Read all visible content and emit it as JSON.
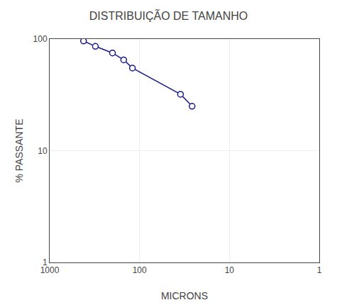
{
  "chart_data": {
    "type": "line",
    "title": "DISTRIBUIÇÃO DE TAMANHO",
    "xlabel": "MICRONS",
    "ylabel": "% PASSANTE",
    "x": [
      420,
      310,
      200,
      150,
      120,
      35,
      26
    ],
    "values": [
      96,
      86,
      75,
      65,
      55,
      32,
      25
    ],
    "color": "#1a1a8c",
    "marker": "circle",
    "log": true,
    "xlim": [
      1000,
      1
    ],
    "ylim": [
      1,
      100
    ],
    "xticks": [
      1000,
      100,
      10,
      1
    ],
    "yticks": [
      1,
      10,
      100
    ],
    "grid": true
  }
}
